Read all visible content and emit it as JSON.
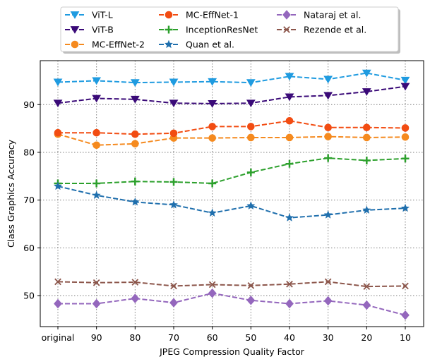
{
  "chart_data": {
    "type": "line",
    "title": "",
    "xlabel": "JPEG Compression Quality Factor",
    "ylabel": "Class Graphics Accuracy",
    "categories": [
      "original",
      "90",
      "80",
      "70",
      "60",
      "50",
      "40",
      "30",
      "20",
      "10"
    ],
    "yticks": [
      50,
      60,
      70,
      80,
      90
    ],
    "ylim": [
      43.5,
      99.2
    ],
    "grid": true,
    "legend_position": "top-center (above plot), 3 columns",
    "series": [
      {
        "name": "ViT-L",
        "color": "#1f9be0",
        "marker": "triangle-down",
        "linestyle": "dashed",
        "values": [
          94.7,
          95.0,
          94.6,
          94.7,
          94.8,
          94.6,
          95.9,
          95.3,
          96.6,
          95.1
        ]
      },
      {
        "name": "ViT-B",
        "color": "#3a0a78",
        "marker": "triangle-down",
        "linestyle": "dashed",
        "values": [
          90.3,
          91.3,
          91.1,
          90.3,
          90.2,
          90.3,
          91.6,
          91.9,
          92.7,
          93.8
        ]
      },
      {
        "name": "MC-EffNet-2",
        "color": "#f58a1f",
        "marker": "circle",
        "linestyle": "dashed",
        "values": [
          83.8,
          81.5,
          81.8,
          83.0,
          83.0,
          83.1,
          83.1,
          83.3,
          83.1,
          83.2
        ]
      },
      {
        "name": "MC-EffNet-1",
        "color": "#f24c12",
        "marker": "circle",
        "linestyle": "dashed",
        "values": [
          84.1,
          84.1,
          83.8,
          84.0,
          85.4,
          85.4,
          86.6,
          85.2,
          85.2,
          85.1
        ]
      },
      {
        "name": "InceptionResNet",
        "color": "#2ca02c",
        "marker": "plus",
        "linestyle": "dashed",
        "values": [
          73.5,
          73.5,
          73.9,
          73.8,
          73.5,
          75.8,
          77.6,
          78.8,
          78.3,
          78.7
        ]
      },
      {
        "name": "Quan et al.",
        "color": "#1f6fad",
        "marker": "star",
        "linestyle": "dashed",
        "values": [
          72.9,
          71.0,
          69.6,
          69.0,
          67.3,
          68.8,
          66.3,
          66.9,
          67.9,
          68.3
        ]
      },
      {
        "name": "Nataraj et al.",
        "color": "#9467bd",
        "marker": "diamond",
        "linestyle": "dashed",
        "values": [
          48.3,
          48.3,
          49.4,
          48.5,
          50.5,
          49.0,
          48.3,
          48.9,
          48.0,
          45.9
        ]
      },
      {
        "name": "Rezende et al.",
        "color": "#8c564b",
        "marker": "x",
        "linestyle": "dashed",
        "values": [
          52.9,
          52.7,
          52.8,
          52.0,
          52.3,
          52.1,
          52.4,
          52.9,
          51.9,
          52.0
        ]
      }
    ]
  }
}
